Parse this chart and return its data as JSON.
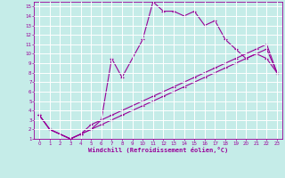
{
  "xlabel": "Windchill (Refroidissement éolien,°C)",
  "ylabel": "",
  "xlim": [
    -0.5,
    23.5
  ],
  "ylim": [
    1,
    15.5
  ],
  "xticks": [
    0,
    1,
    2,
    3,
    4,
    5,
    6,
    7,
    8,
    9,
    10,
    11,
    12,
    13,
    14,
    15,
    16,
    17,
    18,
    19,
    20,
    21,
    22,
    23
  ],
  "yticks": [
    1,
    2,
    3,
    4,
    5,
    6,
    7,
    8,
    9,
    10,
    11,
    12,
    13,
    14,
    15
  ],
  "bg_color": "#c5ece8",
  "grid_color": "#ffffff",
  "line_color": "#990099",
  "line1_x": [
    0,
    1,
    3,
    4,
    5,
    6,
    7,
    8,
    10,
    11,
    12,
    13,
    14,
    15,
    16,
    17,
    18,
    19,
    20,
    21,
    22,
    23
  ],
  "line1_y": [
    3.5,
    2.0,
    1.0,
    1.5,
    2.0,
    3.0,
    9.5,
    7.5,
    11.5,
    15.5,
    14.5,
    14.5,
    14.0,
    14.5,
    13.0,
    13.5,
    11.5,
    10.5,
    9.5,
    10.0,
    9.5,
    8.0
  ],
  "line2_x": [
    0,
    1,
    3,
    4,
    5,
    6,
    7,
    8,
    10,
    11,
    12,
    13,
    14,
    15,
    16,
    17,
    18,
    19,
    20,
    21,
    22,
    23
  ],
  "line2_y": [
    3.5,
    2.0,
    1.0,
    1.5,
    2.5,
    3.0,
    3.5,
    4.0,
    5.0,
    5.5,
    6.0,
    6.5,
    7.0,
    7.5,
    8.0,
    8.5,
    9.0,
    9.5,
    10.0,
    10.5,
    11.0,
    8.0
  ],
  "line3_x": [
    0,
    1,
    3,
    4,
    5,
    6,
    7,
    8,
    10,
    11,
    12,
    13,
    14,
    15,
    16,
    17,
    18,
    19,
    20,
    21,
    22,
    23
  ],
  "line3_y": [
    3.5,
    2.0,
    1.0,
    1.5,
    2.0,
    2.5,
    3.0,
    3.5,
    4.5,
    5.0,
    5.5,
    6.0,
    6.5,
    7.0,
    7.5,
    8.0,
    8.5,
    9.0,
    9.5,
    10.0,
    10.5,
    8.0
  ]
}
